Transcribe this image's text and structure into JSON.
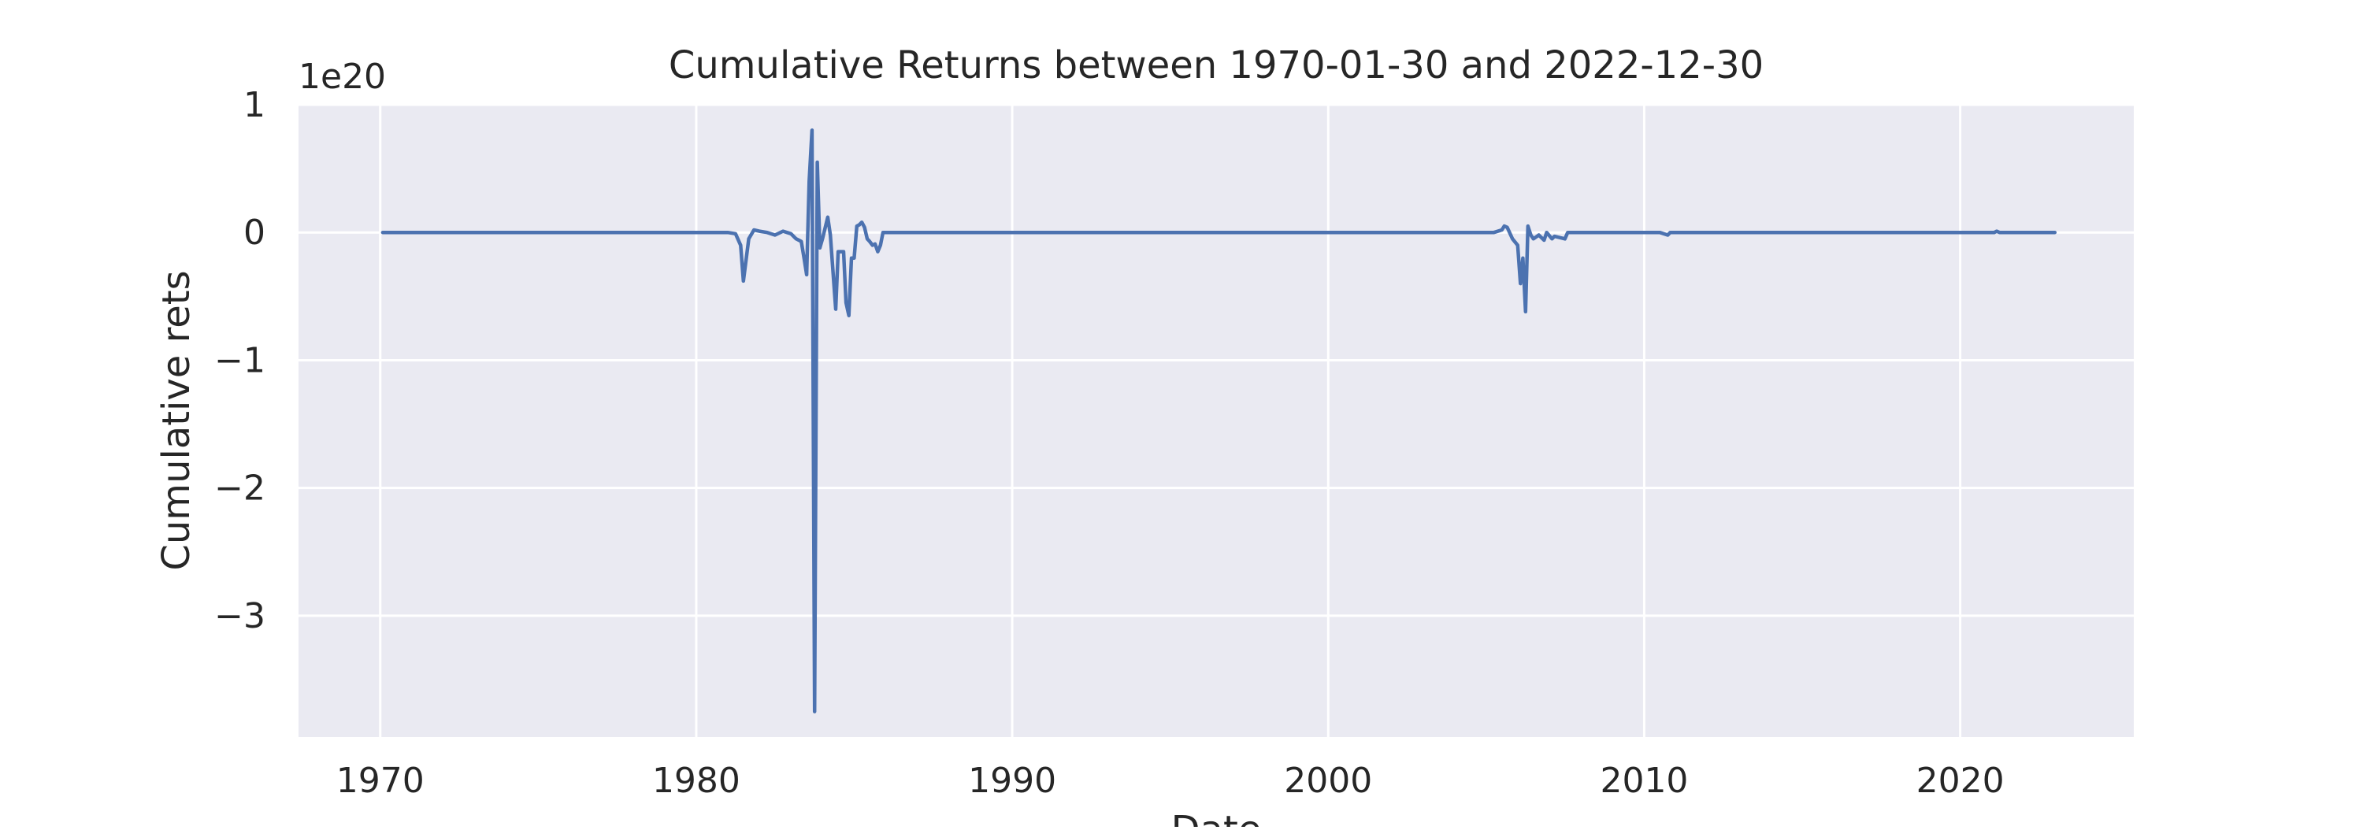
{
  "chart_data": {
    "type": "line",
    "title": "Cumulative Returns between 1970-01-30 and 2022-12-30",
    "xlabel": "Date",
    "ylabel": "Cumulative rets",
    "y_offset_label": "1e20",
    "y_unit_multiplier": 1e+20,
    "xlim": [
      "1967-06-01",
      "2025-06-30"
    ],
    "ylim": [
      -3.95,
      1.0
    ],
    "grid": true,
    "x_ticks": [
      {
        "label": "1970",
        "value": "1970-01-01"
      },
      {
        "label": "1980",
        "value": "1980-01-01"
      },
      {
        "label": "1990",
        "value": "1990-01-01"
      },
      {
        "label": "2000",
        "value": "2000-01-01"
      },
      {
        "label": "2010",
        "value": "2010-01-01"
      },
      {
        "label": "2020",
        "value": "2020-01-01"
      }
    ],
    "y_ticks": [
      {
        "label": "1",
        "value": 1
      },
      {
        "label": "0",
        "value": 0
      },
      {
        "label": "−1",
        "value": -1
      },
      {
        "label": "−2",
        "value": -2
      },
      {
        "label": "−3",
        "value": -3
      }
    ],
    "series": [
      {
        "color": "#4c72b0",
        "x": [
          "1970-01-30",
          "1980-12-31",
          "1981-03-31",
          "1981-05-29",
          "1981-06-30",
          "1981-08-31",
          "1981-10-30",
          "1981-12-31",
          "1982-03-31",
          "1982-06-30",
          "1982-09-30",
          "1982-12-31",
          "1983-02-28",
          "1983-04-29",
          "1983-05-31",
          "1983-06-30",
          "1983-07-29",
          "1983-08-31",
          "1983-09-30",
          "1983-10-31",
          "1983-11-30",
          "1983-12-30",
          "1984-02-29",
          "1984-03-30",
          "1984-05-31",
          "1984-06-29",
          "1984-08-31",
          "1984-09-28",
          "1984-10-31",
          "1984-11-30",
          "1984-12-31",
          "1985-01-31",
          "1985-02-28",
          "1985-03-29",
          "1985-04-30",
          "1985-05-31",
          "1985-06-28",
          "1985-07-31",
          "1985-08-30",
          "1985-09-30",
          "1985-10-31",
          "1985-11-29",
          "1985-12-31",
          "1986-01-31",
          "1986-02-28",
          "1986-03-31",
          "1986-04-30",
          "2005-03-31",
          "2005-06-30",
          "2005-07-29",
          "2005-08-31",
          "2005-10-31",
          "2005-12-30",
          "2006-01-31",
          "2006-02-28",
          "2006-03-31",
          "2006-04-28",
          "2006-05-31",
          "2006-06-30",
          "2006-08-31",
          "2006-10-31",
          "2006-11-30",
          "2007-01-31",
          "2007-02-28",
          "2007-04-30",
          "2007-06-29",
          "2007-07-31",
          "2007-08-31",
          "2010-06-30",
          "2010-09-30",
          "2010-10-29",
          "2011-06-30",
          "2011-07-29",
          "2021-01-29",
          "2021-02-26",
          "2021-03-31",
          "2022-12-30"
        ],
        "y": [
          0,
          0,
          -0.01,
          -0.1,
          -0.38,
          -0.05,
          0.02,
          0.01,
          0.0,
          -0.02,
          0.01,
          -0.01,
          -0.05,
          -0.07,
          -0.2,
          -0.33,
          0.4,
          0.8,
          -3.75,
          0.55,
          -0.12,
          -0.05,
          0.12,
          -0.02,
          -0.6,
          -0.15,
          -0.15,
          -0.55,
          -0.65,
          -0.2,
          -0.2,
          0.05,
          0.06,
          0.08,
          0.04,
          -0.05,
          -0.07,
          -0.1,
          -0.09,
          -0.15,
          -0.1,
          0.0,
          0.0,
          0.0,
          0.0,
          0.0,
          0.0,
          0.0,
          0.02,
          0.05,
          0.04,
          -0.05,
          -0.1,
          -0.4,
          -0.2,
          -0.62,
          0.05,
          -0.02,
          -0.05,
          -0.02,
          -0.06,
          0.0,
          -0.05,
          -0.03,
          -0.04,
          -0.05,
          0.0,
          0.0,
          0.0,
          -0.02,
          0.0,
          0.0,
          0.0,
          0.0,
          0.01,
          0.0,
          0.0
        ]
      }
    ]
  }
}
